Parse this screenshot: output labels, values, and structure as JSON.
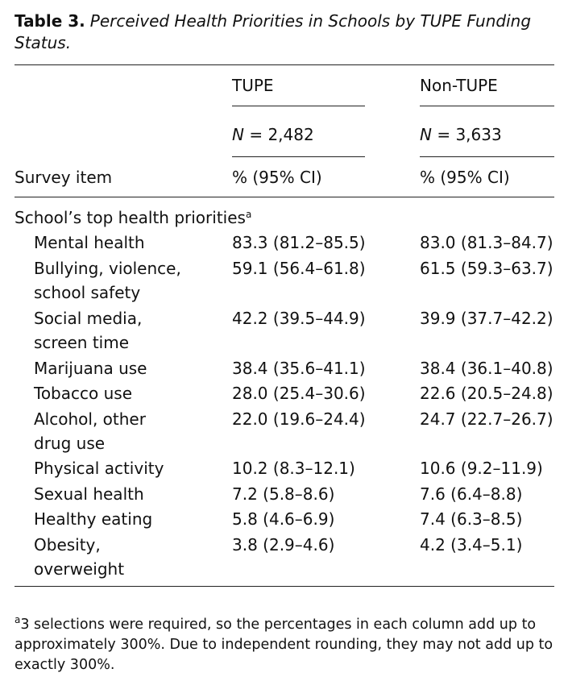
{
  "caption": {
    "label": "Table 3.",
    "title": "Perceived Health Priorities in Schools by TUPE Funding Status."
  },
  "header": {
    "groups": [
      {
        "name": "TUPE",
        "n_label": "N",
        "n_value": "= 2,482"
      },
      {
        "name": "Non-TUPE",
        "n_label": "N",
        "n_value": "= 3,633"
      }
    ],
    "col_item": "Survey item",
    "col_tupe": "% (95% CI)",
    "col_nontupe": "% (95% CI)"
  },
  "section": {
    "title": "School’s top health priorities",
    "footnote_mark": "a"
  },
  "rows": [
    {
      "item": [
        "Mental health"
      ],
      "tupe": "83.3 (81.2–85.5)",
      "nontupe": "83.0 (81.3–84.7)"
    },
    {
      "item": [
        "Bullying, violence,",
        "school safety"
      ],
      "tupe": "59.1 (56.4–61.8)",
      "nontupe": "61.5 (59.3–63.7)"
    },
    {
      "item": [
        "Social media,",
        "screen time"
      ],
      "tupe": "42.2 (39.5–44.9)",
      "nontupe": "39.9 (37.7–42.2)"
    },
    {
      "item": [
        "Marijuana use"
      ],
      "tupe": "38.4 (35.6–41.1)",
      "nontupe": "38.4 (36.1–40.8)"
    },
    {
      "item": [
        "Tobacco use"
      ],
      "tupe": "28.0 (25.4–30.6)",
      "nontupe": "22.6 (20.5–24.8)"
    },
    {
      "item": [
        "Alcohol, other",
        "drug use"
      ],
      "tupe": "22.0 (19.6–24.4)",
      "nontupe": "24.7 (22.7–26.7)"
    },
    {
      "item": [
        "Physical activity"
      ],
      "tupe": "10.2 (8.3–12.1)",
      "nontupe": "10.6 (9.2–11.9)"
    },
    {
      "item": [
        "Sexual health"
      ],
      "tupe": "7.2 (5.8–8.6)",
      "nontupe": "7.6 (6.4–8.8)"
    },
    {
      "item": [
        "Healthy eating"
      ],
      "tupe": "5.8 (4.6–6.9)",
      "nontupe": "7.4 (6.3–8.5)"
    },
    {
      "item": [
        "Obesity,",
        "overweight"
      ],
      "tupe": "3.8 (2.9–4.6)",
      "nontupe": "4.2 (3.4–5.1)"
    }
  ],
  "footnote": {
    "mark": "a",
    "text": "3 selections were required, so the percentages in each column add up to approximately 300%. Due to independent rounding, they may not add up to exactly 300%."
  }
}
